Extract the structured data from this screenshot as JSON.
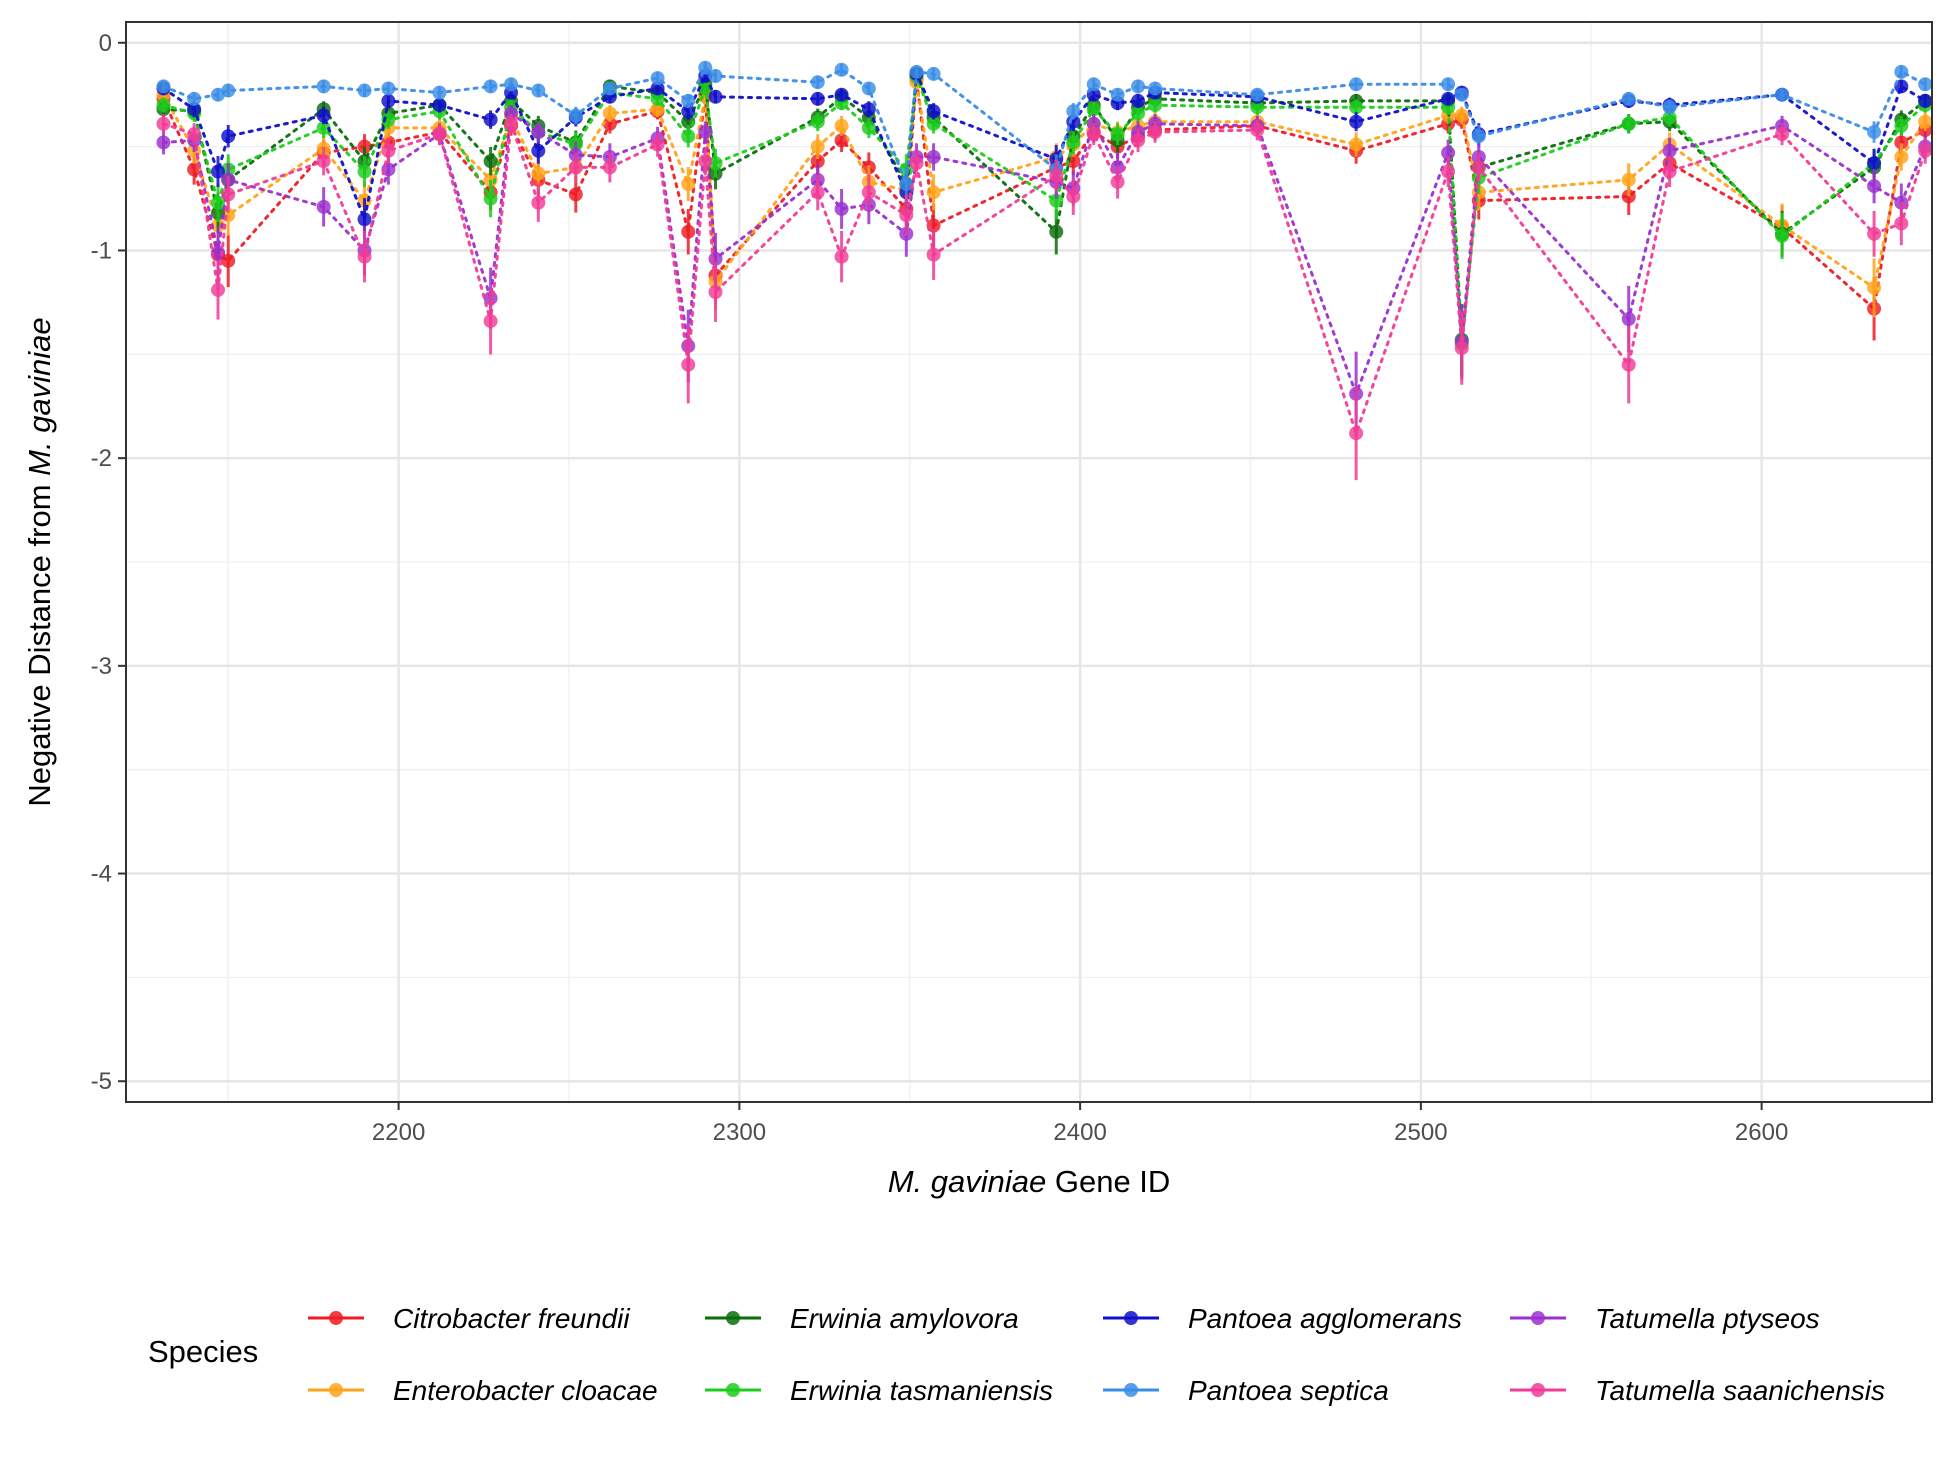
{
  "chart_data": {
    "type": "scatter",
    "xlabel_italic": "M. gaviniae",
    "xlabel_rest": " Gene ID",
    "ylabel_plain": "Negative Distance from ",
    "ylabel_italic": "M. gaviniae",
    "xlim": [
      2120,
      2650
    ],
    "ylim": [
      -5.1,
      0.1
    ],
    "x_ticks": [
      2200,
      2300,
      2400,
      2500,
      2600
    ],
    "y_ticks": [
      0,
      -1,
      -2,
      -3,
      -4,
      -5
    ],
    "grid": true,
    "legend": {
      "title": "Species",
      "position": "bottom"
    },
    "x": [
      2131,
      2140,
      2147,
      2150,
      2178,
      2190,
      2197,
      2212,
      2227,
      2233,
      2241,
      2252,
      2262,
      2276,
      2285,
      2290,
      2293,
      2323,
      2330,
      2338,
      2349,
      2352,
      2357,
      2393,
      2398,
      2404,
      2411,
      2417,
      2422,
      2452,
      2481,
      2508,
      2512,
      2517,
      2561,
      2573,
      2606,
      2633,
      2641,
      2648
    ],
    "series": [
      {
        "name": "Citrobacter freundii",
        "color": "#ee1c25",
        "values": [
          -0.27,
          -0.61,
          -1.02,
          -1.05,
          -0.53,
          -0.5,
          -0.48,
          -0.43,
          -0.72,
          -0.4,
          -0.66,
          -0.73,
          -0.39,
          -0.33,
          -0.91,
          -0.25,
          -1.12,
          -0.57,
          -0.47,
          -0.6,
          -0.8,
          -0.17,
          -0.88,
          -0.6,
          -0.57,
          -0.43,
          -0.5,
          -0.45,
          -0.42,
          -0.4,
          -0.52,
          -0.39,
          -0.37,
          -0.76,
          -0.74,
          -0.58,
          -0.89,
          -1.28,
          -0.48,
          -0.42
        ]
      },
      {
        "name": "Enterobacter cloacae",
        "color": "#ffa31a",
        "values": [
          -0.25,
          -0.52,
          -0.88,
          -0.83,
          -0.51,
          -0.76,
          -0.41,
          -0.41,
          -0.66,
          -0.36,
          -0.63,
          -0.6,
          -0.34,
          -0.32,
          -0.68,
          -0.26,
          -1.15,
          -0.5,
          -0.4,
          -0.67,
          -0.71,
          -0.19,
          -0.72,
          -0.55,
          -0.49,
          -0.39,
          -0.43,
          -0.4,
          -0.38,
          -0.38,
          -0.49,
          -0.35,
          -0.35,
          -0.72,
          -0.66,
          -0.49,
          -0.88,
          -1.18,
          -0.55,
          -0.38
        ]
      },
      {
        "name": "Erwinia amylovora",
        "color": "#0a6e0a",
        "values": [
          -0.32,
          -0.33,
          -0.82,
          -0.66,
          -0.32,
          -0.57,
          -0.34,
          -0.3,
          -0.57,
          -0.28,
          -0.4,
          -0.48,
          -0.21,
          -0.24,
          -0.38,
          -0.2,
          -0.63,
          -0.36,
          -0.26,
          -0.36,
          -0.68,
          -0.15,
          -0.36,
          -0.91,
          -0.45,
          -0.3,
          -0.47,
          -0.31,
          -0.27,
          -0.29,
          -0.28,
          -0.28,
          -1.43,
          -0.6,
          -0.39,
          -0.38,
          -0.92,
          -0.6,
          -0.37,
          -0.28
        ]
      },
      {
        "name": "Erwinia tasmaniensis",
        "color": "#1ccc1c",
        "values": [
          -0.3,
          -0.34,
          -0.77,
          -0.61,
          -0.41,
          -0.62,
          -0.37,
          -0.33,
          -0.75,
          -0.31,
          -0.43,
          -0.49,
          -0.24,
          -0.27,
          -0.45,
          -0.22,
          -0.58,
          -0.38,
          -0.29,
          -0.41,
          -0.61,
          -0.16,
          -0.39,
          -0.76,
          -0.48,
          -0.32,
          -0.44,
          -0.34,
          -0.3,
          -0.31,
          -0.31,
          -0.31,
          -1.45,
          -0.65,
          -0.39,
          -0.36,
          -0.93,
          -0.58,
          -0.4,
          -0.3
        ]
      },
      {
        "name": "Pantoea agglomerans",
        "color": "#1010c8",
        "values": [
          -0.22,
          -0.32,
          -0.62,
          -0.45,
          -0.35,
          -0.85,
          -0.28,
          -0.3,
          -0.37,
          -0.24,
          -0.52,
          -0.36,
          -0.26,
          -0.22,
          -0.33,
          -0.16,
          -0.26,
          -0.27,
          -0.25,
          -0.32,
          -0.72,
          -0.15,
          -0.33,
          -0.56,
          -0.38,
          -0.25,
          -0.29,
          -0.28,
          -0.24,
          -0.26,
          -0.38,
          -0.27,
          -0.24,
          -0.44,
          -0.28,
          -0.3,
          -0.25,
          -0.58,
          -0.21,
          -0.28
        ]
      },
      {
        "name": "Pantoea septica",
        "color": "#3b8de6",
        "values": [
          -0.21,
          -0.27,
          -0.25,
          -0.23,
          -0.21,
          -0.23,
          -0.22,
          -0.24,
          -0.21,
          -0.2,
          -0.23,
          -0.35,
          -0.22,
          -0.17,
          -0.28,
          -0.12,
          -0.16,
          -0.19,
          -0.13,
          -0.22,
          -0.68,
          -0.14,
          -0.15,
          -0.61,
          -0.33,
          -0.2,
          -0.25,
          -0.21,
          -0.22,
          -0.25,
          -0.2,
          -0.2,
          -0.25,
          -0.45,
          -0.27,
          -0.31,
          -0.25,
          -0.43,
          -0.14,
          -0.2
        ]
      },
      {
        "name": "Tatumella ptyseos",
        "color": "#9b30d0",
        "values": [
          -0.48,
          -0.47,
          -1.01,
          -0.66,
          -0.79,
          -1.0,
          -0.61,
          -0.44,
          -1.23,
          -0.34,
          -0.43,
          -0.54,
          -0.55,
          -0.46,
          -1.46,
          -0.43,
          -1.04,
          -0.66,
          -0.8,
          -0.78,
          -0.92,
          -0.55,
          -0.55,
          -0.67,
          -0.7,
          -0.39,
          -0.6,
          -0.43,
          -0.39,
          -0.4,
          -1.69,
          -0.53,
          -1.44,
          -0.55,
          -1.33,
          -0.52,
          -0.4,
          -0.69,
          -0.77,
          -0.5
        ]
      },
      {
        "name": "Tatumella saanichensis",
        "color": "#f03c96",
        "values": [
          -0.39,
          -0.44,
          -1.19,
          -0.73,
          -0.57,
          -1.03,
          -0.52,
          -0.44,
          -1.34,
          -0.39,
          -0.77,
          -0.6,
          -0.6,
          -0.49,
          -1.55,
          -0.57,
          -1.2,
          -0.72,
          -1.03,
          -0.72,
          -0.83,
          -0.58,
          -1.02,
          -0.64,
          -0.74,
          -0.44,
          -0.67,
          -0.47,
          -0.43,
          -0.42,
          -1.88,
          -0.62,
          -1.47,
          -0.6,
          -1.55,
          -0.62,
          -0.44,
          -0.92,
          -0.87,
          -0.52
        ]
      }
    ]
  }
}
